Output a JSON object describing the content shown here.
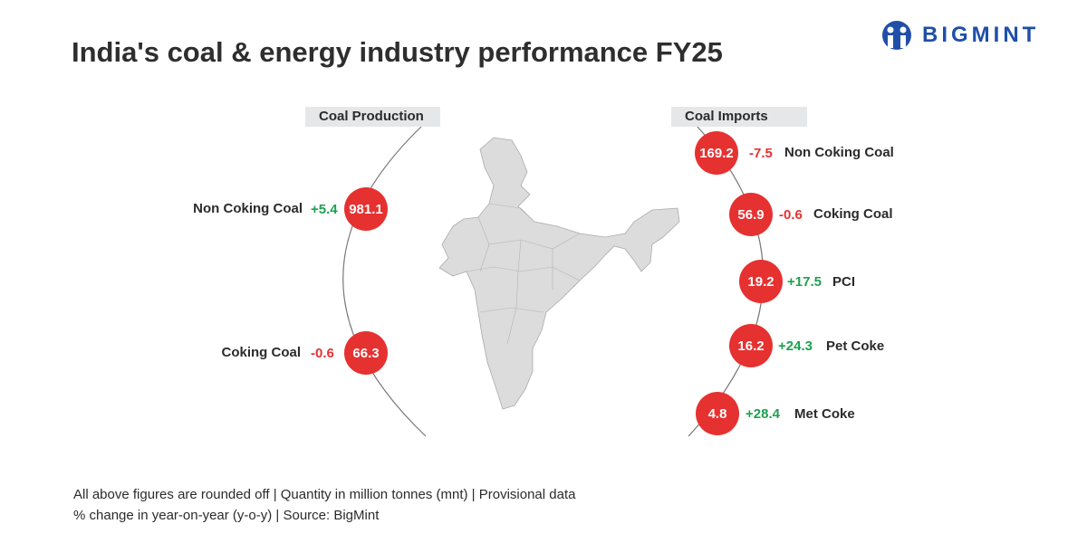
{
  "title": "India's coal & energy industry performance FY25",
  "logo": {
    "text": "BIGMINT",
    "color": "#1f4fa8"
  },
  "colors": {
    "bubble": "#e63131",
    "negative": "#e63131",
    "positive": "#1fa050"
  },
  "production": {
    "header": "Coal Production",
    "items": [
      {
        "label": "Non Coking Coal",
        "change": "+5.4",
        "value": "981.1"
      },
      {
        "label": "Coking Coal",
        "change": "-0.6",
        "value": "66.3"
      }
    ]
  },
  "imports": {
    "header": "Coal Imports",
    "items": [
      {
        "label": "Non Coking Coal",
        "change": "-7.5",
        "value": "169.2"
      },
      {
        "label": "Coking Coal",
        "change": "-0.6",
        "value": "56.9"
      },
      {
        "label": "PCI",
        "change": "+17.5",
        "value": "19.2"
      },
      {
        "label": "Pet Coke",
        "change": "+24.3",
        "value": "16.2"
      },
      {
        "label": "Met Coke",
        "change": "+28.4",
        "value": "4.8"
      }
    ]
  },
  "footer": [
    "All above figures are rounded off | Quantity in million tonnes (mnt) | Provisional data",
    "% change in year-on-year (y-o-y) | Source: BigMint"
  ]
}
